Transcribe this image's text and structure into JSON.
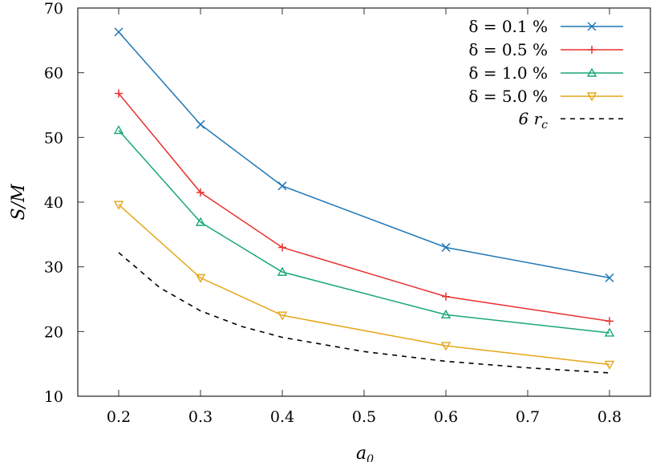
{
  "chart_data": {
    "type": "line",
    "title": "",
    "xlabel": "a_0",
    "ylabel": "S/M",
    "xlim": [
      0.15,
      0.85
    ],
    "ylim": [
      10,
      70
    ],
    "x_ticks": [
      "0.2",
      "0.3",
      "0.4",
      "0.5",
      "0.6",
      "0.7",
      "0.8"
    ],
    "y_ticks": [
      "10",
      "20",
      "30",
      "40",
      "50",
      "60",
      "70"
    ],
    "grid": false,
    "legend_position": "top-right",
    "x": [
      0.2,
      0.3,
      0.4,
      0.6,
      0.8
    ],
    "series": [
      {
        "name": "δ = 0.1 %",
        "color": "#1f77b4",
        "marker": "x",
        "values": [
          66.3,
          52.0,
          42.5,
          33.0,
          28.3
        ]
      },
      {
        "name": "δ = 0.5 %",
        "color": "#e8312f",
        "marker": "+",
        "values": [
          56.8,
          41.5,
          33.0,
          25.4,
          21.6
        ]
      },
      {
        "name": "δ = 1.0 %",
        "color": "#1aa67a",
        "marker": "triangle-up",
        "values": [
          51.1,
          36.9,
          29.2,
          22.6,
          19.8
        ]
      },
      {
        "name": "δ = 5.0 %",
        "color": "#e6a617",
        "marker": "triangle-down",
        "values": [
          39.6,
          28.3,
          22.5,
          17.8,
          14.9
        ]
      },
      {
        "name": "6 r_c",
        "color": "#000000",
        "marker": "none",
        "dashed": true,
        "x": [
          0.2,
          0.25,
          0.3,
          0.35,
          0.4,
          0.5,
          0.6,
          0.7,
          0.8
        ],
        "values": [
          32.2,
          26.8,
          23.2,
          20.8,
          19.1,
          16.9,
          15.4,
          14.4,
          13.6
        ]
      }
    ]
  },
  "legend": {
    "items": [
      {
        "delta": "δ = 0.1 %"
      },
      {
        "delta": "δ = 0.5 %"
      },
      {
        "delta": "δ = 1.0 %"
      },
      {
        "delta": "δ = 5.0 %"
      },
      {
        "delta": "6 r"
      }
    ],
    "rc_subscript": "c"
  },
  "axes": {
    "xlabel_main": "a",
    "xlabel_sub": "0",
    "ylabel": "S/M"
  }
}
